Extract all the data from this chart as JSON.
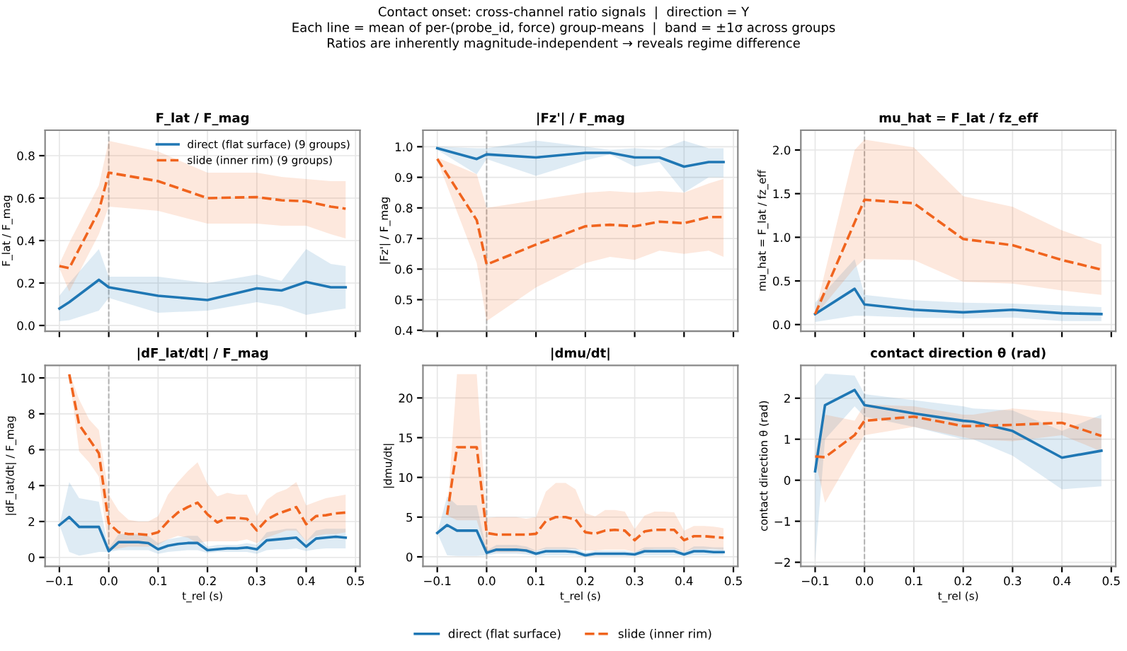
{
  "chart_data": [
    {
      "type": "line",
      "title": "F_lat / F_mag",
      "subtitle": "Contact onset: cross-channel ratio signals  |  direction = Y\nEach line = mean of per-(probe_id, force) group-means  |  band = ±1σ across groups\nRatios are inherently magnitude-independent → reveals regime difference",
      "ylabel": "F_lat / F_mag",
      "grid": true,
      "legend": "top right",
      "tick_labels": "y",
      "x": [
        -0.1,
        -0.08,
        -0.02,
        0,
        0.1,
        0.2,
        0.3,
        0.35,
        0.4,
        0.45,
        0.48
      ],
      "xlim": [
        -0.129,
        0.509
      ],
      "xticks": [
        {
          "value": -0.1,
          "label": null
        },
        {
          "value": 0,
          "label": null
        },
        {
          "value": 0.1,
          "label": null
        },
        {
          "value": 0.2,
          "label": null
        },
        {
          "value": 0.3,
          "label": null
        },
        {
          "value": 0.4,
          "label": null
        },
        {
          "value": 0.5,
          "label": null
        }
      ],
      "ylim": [
        -0.027,
        0.92
      ],
      "yticks": [
        {
          "value": 0,
          "label": "0.0"
        },
        0.2,
        0.4,
        0.6,
        0.8
      ],
      "ref_lines": [
        {
          "axis": "x",
          "value": 0,
          "color": "#b0b0b0",
          "line_style": "dashed"
        }
      ],
      "series": [
        {
          "name": "direct (flat surface) (9 groups)",
          "color": "#1f77b4",
          "line_style": "solid",
          "values": [
            0.08,
            0.11,
            0.215,
            0.18,
            0.14,
            0.12,
            0.175,
            0.165,
            0.205,
            0.18,
            0.18
          ],
          "lower": [
            0.02,
            0.025,
            0.07,
            0.13,
            0.06,
            0.07,
            0.11,
            0.09,
            0.05,
            0.07,
            0.08
          ],
          "upper": [
            0.14,
            0.2,
            0.36,
            0.23,
            0.23,
            0.2,
            0.24,
            0.21,
            0.36,
            0.29,
            0.28
          ]
        },
        {
          "name": "slide (inner rim) (9 groups)",
          "color": "#f0641e",
          "line_style": "dashed",
          "values": [
            0.28,
            0.27,
            0.54,
            0.72,
            0.68,
            0.6,
            0.605,
            0.59,
            0.585,
            0.56,
            0.55
          ],
          "lower": [
            0.27,
            0.16,
            0.43,
            0.56,
            0.54,
            0.48,
            0.48,
            0.47,
            0.47,
            0.43,
            0.41
          ],
          "upper": [
            0.29,
            0.39,
            0.66,
            0.87,
            0.82,
            0.72,
            0.72,
            0.7,
            0.69,
            0.68,
            0.68
          ]
        }
      ]
    },
    {
      "type": "line",
      "title": "|Fz'| / F_mag",
      "ylabel": "|Fz'| / F_mag",
      "grid": true,
      "tick_labels": "y",
      "legend": "bottom",
      "x": [
        -0.1,
        -0.02,
        0,
        0.1,
        0.2,
        0.25,
        0.3,
        0.35,
        0.4,
        0.45,
        0.48
      ],
      "xlim": [
        -0.129,
        0.509
      ],
      "xticks": [
        {
          "value": -0.1,
          "label": null
        },
        {
          "value": 0,
          "label": null
        },
        {
          "value": 0.1,
          "label": null
        },
        {
          "value": 0.2,
          "label": null
        },
        {
          "value": 0.3,
          "label": null
        },
        {
          "value": 0.4,
          "label": null
        },
        {
          "value": 0.5,
          "label": null
        }
      ],
      "ylim": [
        0.397,
        1.054
      ],
      "yticks": [
        0.4,
        0.5,
        0.6,
        0.7,
        0.8,
        0.9,
        {
          "value": 1.0,
          "label": "1.0"
        }
      ],
      "ref_lines": [
        {
          "axis": "x",
          "value": 0,
          "color": "#b0b0b0",
          "line_style": "dashed"
        }
      ],
      "series": [
        {
          "name": "direct (flat surface)",
          "color": "#1f77b4",
          "line_style": "solid",
          "values": [
            0.995,
            0.96,
            0.975,
            0.965,
            0.98,
            0.98,
            0.965,
            0.965,
            0.935,
            0.95,
            0.95
          ],
          "lower": [
            0.99,
            0.91,
            0.96,
            0.905,
            0.955,
            0.975,
            0.935,
            0.95,
            0.85,
            0.9,
            0.9
          ],
          "upper": [
            1.0,
            0.995,
            0.995,
            1.02,
            1.0,
            0.99,
            0.995,
            0.99,
            1.02,
            0.995,
            0.995
          ]
        },
        {
          "name": "slide (inner rim)",
          "color": "#f0641e",
          "line_style": "dashed",
          "values": [
            0.96,
            0.76,
            0.615,
            0.68,
            0.74,
            0.745,
            0.74,
            0.755,
            0.75,
            0.77,
            0.77
          ],
          "lower": [
            0.955,
            0.62,
            0.43,
            0.54,
            0.62,
            0.64,
            0.63,
            0.66,
            0.65,
            0.66,
            0.64
          ],
          "upper": [
            0.965,
            0.91,
            0.8,
            0.825,
            0.85,
            0.855,
            0.85,
            0.855,
            0.85,
            0.88,
            0.895
          ]
        }
      ]
    },
    {
      "type": "line",
      "title": "mu_hat = F_lat / fz_eff",
      "ylabel": "mu_hat = F_lat / fz_eff",
      "grid": true,
      "tick_labels": "y",
      "x": [
        -0.1,
        -0.02,
        0,
        0.1,
        0.2,
        0.3,
        0.4,
        0.48
      ],
      "xlim": [
        -0.129,
        0.509
      ],
      "xticks": [
        {
          "value": -0.1,
          "label": null
        },
        {
          "value": 0,
          "label": null
        },
        {
          "value": 0.1,
          "label": null
        },
        {
          "value": 0.2,
          "label": null
        },
        {
          "value": 0.3,
          "label": null
        },
        {
          "value": 0.4,
          "label": null
        },
        {
          "value": 0.5,
          "label": null
        }
      ],
      "ylim": [
        -0.076,
        2.227
      ],
      "yticks": [
        {
          "value": 0,
          "label": "0.0"
        },
        0.5,
        {
          "value": 1,
          "label": "1.0"
        },
        1.5,
        {
          "value": 2,
          "label": "2.0"
        }
      ],
      "ref_lines": [
        {
          "axis": "x",
          "value": 0,
          "color": "#b0b0b0",
          "line_style": "dashed"
        }
      ],
      "series": [
        {
          "color": "#1f77b4",
          "line_style": "solid",
          "values": [
            0.12,
            0.41,
            0.23,
            0.17,
            0.14,
            0.17,
            0.13,
            0.12
          ],
          "lower": [
            0.03,
            0.1,
            0.1,
            0.08,
            0.07,
            0.08,
            0.04,
            0.04
          ],
          "upper": [
            0.25,
            0.75,
            0.34,
            0.28,
            0.25,
            0.24,
            0.22,
            0.2
          ]
        },
        {
          "color": "#f0641e",
          "line_style": "dashed",
          "values": [
            0.12,
            1.17,
            1.43,
            1.39,
            0.98,
            0.91,
            0.74,
            0.63
          ],
          "lower": [
            0.1,
            0.65,
            0.75,
            0.74,
            0.49,
            0.47,
            0.39,
            0.34
          ],
          "upper": [
            0.14,
            2.0,
            2.12,
            2.03,
            1.47,
            1.35,
            1.08,
            0.92
          ]
        }
      ]
    },
    {
      "type": "line",
      "title": "|dF_lat/dt| / F_mag",
      "xlabel": "t_rel (s)",
      "ylabel": "|dF_lat/dt| / F_mag",
      "grid": true,
      "x": [
        -0.1,
        -0.08,
        -0.06,
        -0.04,
        -0.02,
        0,
        0.02,
        0.04,
        0.06,
        0.08,
        0.1,
        0.12,
        0.14,
        0.16,
        0.18,
        0.2,
        0.22,
        0.24,
        0.26,
        0.28,
        0.3,
        0.32,
        0.34,
        0.36,
        0.38,
        0.4,
        0.42,
        0.44,
        0.46,
        0.48
      ],
      "xlim": [
        -0.129,
        0.509
      ],
      "xticks": [
        {
          "value": -0.1,
          "label": "−0.1"
        },
        {
          "value": 0,
          "label": "0.0"
        },
        {
          "value": 0.1,
          "label": "0.1"
        },
        {
          "value": 0.2,
          "label": "0.2"
        },
        {
          "value": 0.3,
          "label": "0.3"
        },
        {
          "value": 0.4,
          "label": "0.4"
        },
        {
          "value": 0.5,
          "label": "0.5"
        }
      ],
      "ylim": [
        -0.5,
        10.7
      ],
      "yticks": [
        0,
        2,
        4,
        6,
        8,
        10
      ],
      "ref_lines": [
        {
          "axis": "x",
          "value": 0,
          "color": "#b0b0b0",
          "line_style": "dashed"
        }
      ],
      "series": [
        {
          "color": "#1f77b4",
          "line_style": "solid",
          "values": [
            1.8,
            2.25,
            1.7,
            1.7,
            1.7,
            0.35,
            0.85,
            0.85,
            0.85,
            0.8,
            0.45,
            0.65,
            0.75,
            0.8,
            0.8,
            0.4,
            0.45,
            0.5,
            0.5,
            0.55,
            0.45,
            0.95,
            1.0,
            1.05,
            1.1,
            0.6,
            1.05,
            1.1,
            1.15,
            1.1
          ],
          "lower": [
            1.8,
            0.3,
            0.1,
            0.2,
            0.3,
            0.3,
            0.4,
            0.4,
            0.4,
            0.4,
            0.2,
            0.3,
            0.35,
            0.4,
            0.4,
            0.25,
            0.3,
            0.3,
            0.3,
            0.3,
            0.2,
            0.4,
            0.45,
            0.45,
            0.5,
            0.35,
            0.45,
            0.5,
            0.5,
            0.5
          ],
          "upper": [
            1.8,
            4.2,
            3.3,
            3.2,
            3.1,
            0.5,
            1.3,
            1.3,
            1.3,
            1.2,
            0.8,
            1.0,
            1.1,
            1.2,
            1.2,
            0.6,
            0.7,
            0.7,
            0.7,
            0.8,
            0.7,
            1.4,
            1.5,
            1.6,
            1.6,
            0.9,
            1.5,
            1.6,
            1.6,
            1.6
          ]
        },
        {
          "color": "#f0641e",
          "line_style": "dashed",
          "values": [
            null,
            10.2,
            7.4,
            6.6,
            5.8,
            1.9,
            1.4,
            1.3,
            1.3,
            1.25,
            1.4,
            2.0,
            2.5,
            2.8,
            3.05,
            2.4,
            1.95,
            2.2,
            2.2,
            2.15,
            1.5,
            2.1,
            2.4,
            2.6,
            2.8,
            1.85,
            2.3,
            2.35,
            2.45,
            2.5
          ],
          "lower": [
            null,
            10.1,
            5.9,
            5.3,
            4.5,
            0.4,
            0.5,
            0.6,
            0.6,
            0.6,
            0.7,
            1.0,
            1.2,
            1.1,
            0.8,
            0.9,
            0.9,
            0.9,
            0.9,
            1.0,
            0.8,
            1.1,
            1.3,
            1.5,
            1.5,
            0.9,
            1.2,
            1.3,
            1.3,
            1.4
          ],
          "upper": [
            null,
            10.3,
            8.8,
            7.7,
            7.1,
            3.5,
            2.6,
            2.1,
            2.0,
            2.0,
            2.3,
            3.5,
            4.2,
            4.8,
            5.3,
            4.1,
            3.4,
            3.6,
            3.5,
            3.5,
            2.3,
            3.2,
            3.6,
            3.8,
            4.2,
            2.9,
            3.1,
            3.3,
            3.4,
            3.5
          ]
        }
      ]
    },
    {
      "type": "line",
      "title": "|dmu/dt|",
      "xlabel": "t_rel (s)",
      "ylabel": "|dmu/dt|",
      "grid": true,
      "x": [
        -0.1,
        -0.08,
        -0.06,
        -0.04,
        -0.02,
        0,
        0.02,
        0.04,
        0.06,
        0.08,
        0.1,
        0.12,
        0.14,
        0.16,
        0.18,
        0.2,
        0.22,
        0.24,
        0.26,
        0.28,
        0.3,
        0.32,
        0.34,
        0.36,
        0.38,
        0.4,
        0.42,
        0.44,
        0.46,
        0.48
      ],
      "xlim": [
        -0.129,
        0.509
      ],
      "xticks": [
        {
          "value": -0.1,
          "label": "−0.1"
        },
        {
          "value": 0,
          "label": "0.0"
        },
        {
          "value": 0.1,
          "label": "0.1"
        },
        {
          "value": 0.2,
          "label": "0.2"
        },
        {
          "value": 0.3,
          "label": "0.3"
        },
        {
          "value": 0.4,
          "label": "0.4"
        },
        {
          "value": 0.5,
          "label": "0.5"
        }
      ],
      "ylim": [
        -1.2,
        24.1
      ],
      "yticks": [
        0,
        5,
        10,
        15,
        20
      ],
      "ref_lines": [
        {
          "axis": "x",
          "value": 0,
          "color": "#b0b0b0",
          "line_style": "dashed"
        }
      ],
      "series": [
        {
          "color": "#1f77b4",
          "line_style": "solid",
          "values": [
            3.0,
            4.0,
            3.3,
            3.3,
            3.3,
            0.5,
            0.9,
            0.9,
            0.9,
            0.8,
            0.4,
            0.7,
            0.7,
            0.7,
            0.6,
            0.2,
            0.4,
            0.4,
            0.4,
            0.4,
            0.3,
            0.7,
            0.7,
            0.7,
            0.7,
            0.3,
            0.7,
            0.7,
            0.6,
            0.6
          ],
          "lower": [
            3.0,
            0.2,
            0.1,
            0.1,
            0.1,
            0.2,
            0.4,
            0.4,
            0.4,
            0.3,
            0.1,
            0.2,
            0.2,
            0.2,
            0.2,
            0.0,
            0.1,
            0.1,
            0.1,
            0.1,
            0.1,
            0.2,
            0.2,
            0.2,
            0.2,
            0.1,
            0.2,
            0.2,
            0.2,
            0.2
          ],
          "upper": [
            3.0,
            7.6,
            6.5,
            6.5,
            6.5,
            0.8,
            1.5,
            1.5,
            1.5,
            1.3,
            0.8,
            1.2,
            1.2,
            1.2,
            1.1,
            0.5,
            0.8,
            0.8,
            0.8,
            0.8,
            0.6,
            1.2,
            1.2,
            1.2,
            1.2,
            0.6,
            1.3,
            1.3,
            1.2,
            1.2
          ]
        },
        {
          "color": "#f0641e",
          "line_style": "dashed",
          "values": [
            null,
            5.3,
            13.8,
            13.8,
            13.8,
            3.0,
            2.8,
            2.8,
            2.8,
            2.8,
            2.9,
            4.5,
            5.0,
            5.0,
            4.7,
            3.1,
            2.9,
            3.3,
            3.4,
            3.3,
            2.1,
            3.2,
            3.4,
            3.4,
            3.4,
            2.1,
            2.6,
            2.6,
            2.5,
            2.4
          ],
          "lower": [
            null,
            5.2,
            4.6,
            4.6,
            4.6,
            0.6,
            0.6,
            0.6,
            0.6,
            0.6,
            0.8,
            1.0,
            1.0,
            1.0,
            1.0,
            0.8,
            0.8,
            0.9,
            0.9,
            0.9,
            0.6,
            0.9,
            1.0,
            1.0,
            1.0,
            0.6,
            1.0,
            1.0,
            1.0,
            0.9
          ],
          "upper": [
            null,
            5.4,
            23.0,
            23.0,
            23.0,
            4.9,
            5.0,
            5.0,
            5.0,
            4.8,
            5.0,
            8.2,
            9.3,
            9.3,
            8.5,
            5.5,
            5.1,
            5.9,
            5.9,
            5.7,
            3.5,
            5.2,
            5.7,
            5.7,
            5.6,
            3.3,
            3.9,
            3.9,
            3.8,
            3.6
          ]
        }
      ]
    },
    {
      "type": "line",
      "title": "contact direction θ (rad)",
      "xlabel": "t_rel (s)",
      "ylabel": "contact direction θ (rad)",
      "grid": true,
      "x": [
        -0.1,
        -0.08,
        -0.02,
        0,
        0.1,
        0.2,
        0.22,
        0.3,
        0.4,
        0.48
      ],
      "xlim": [
        -0.129,
        0.509
      ],
      "xticks": [
        {
          "value": -0.1,
          "label": "−0.1"
        },
        {
          "value": 0,
          "label": "0.0"
        },
        {
          "value": 0.1,
          "label": "0.1"
        },
        {
          "value": 0.2,
          "label": "0.2"
        },
        {
          "value": 0.3,
          "label": "0.3"
        },
        {
          "value": 0.4,
          "label": "0.4"
        },
        {
          "value": 0.5,
          "label": "0.5"
        }
      ],
      "ylim": [
        -2.1,
        2.8
      ],
      "yticks": [
        {
          "value": -2,
          "label": "−2"
        },
        {
          "value": -1,
          "label": "−1"
        },
        0,
        1,
        2
      ],
      "ref_lines": [
        {
          "axis": "x",
          "value": 0,
          "color": "#b0b0b0",
          "line_style": "dashed"
        }
      ],
      "series": [
        {
          "color": "#1f77b4",
          "line_style": "solid",
          "values": [
            0.22,
            1.83,
            2.2,
            1.83,
            1.63,
            1.45,
            1.43,
            1.2,
            0.55,
            0.72
          ],
          "lower": [
            -1.95,
            1.0,
            1.8,
            1.55,
            1.3,
            1.0,
            1.0,
            0.6,
            -0.22,
            -0.15
          ],
          "upper": [
            2.3,
            2.6,
            2.55,
            2.1,
            1.95,
            1.8,
            1.75,
            1.7,
            1.2,
            1.6
          ]
        },
        {
          "color": "#f0641e",
          "line_style": "dashed",
          "values": [
            0.58,
            0.56,
            1.1,
            1.45,
            1.55,
            1.32,
            1.32,
            1.35,
            1.4,
            1.08
          ],
          "lower": [
            0.5,
            -0.55,
            0.7,
            1.1,
            1.3,
            1.05,
            1.0,
            0.95,
            1.1,
            0.7
          ],
          "upper": [
            0.65,
            1.6,
            1.45,
            1.85,
            1.8,
            1.6,
            1.6,
            1.75,
            1.65,
            1.5
          ]
        }
      ]
    }
  ]
}
